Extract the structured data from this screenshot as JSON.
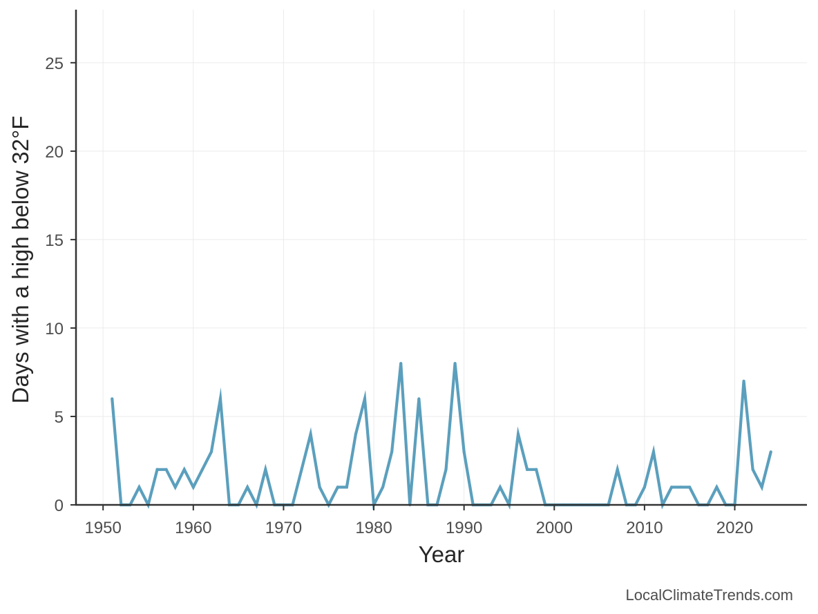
{
  "chart_data": {
    "type": "line",
    "xlabel": "Year",
    "ylabel": "Days with a high below 32°F",
    "xlim": [
      1947,
      2028
    ],
    "ylim": [
      0,
      28
    ],
    "xticks": [
      1950,
      1960,
      1970,
      1980,
      1990,
      2000,
      2010,
      2020
    ],
    "yticks": [
      0,
      5,
      10,
      15,
      20,
      25
    ],
    "grid": true,
    "legend": "none",
    "colors": {
      "line": "#5b9fbd",
      "axis": "#333333",
      "grid": "#ebebeb"
    },
    "series": [
      {
        "x": [
          1951,
          1952,
          1953,
          1954,
          1955,
          1956,
          1957,
          1958,
          1959,
          1960,
          1961,
          1962,
          1963,
          1964,
          1965,
          1966,
          1967,
          1968,
          1969,
          1970,
          1971,
          1972,
          1973,
          1974,
          1975,
          1976,
          1977,
          1978,
          1979,
          1980,
          1981,
          1982,
          1983,
          1984,
          1985,
          1986,
          1987,
          1988,
          1989,
          1990,
          1991,
          1992,
          1993,
          1994,
          1995,
          1996,
          1997,
          1998,
          1999,
          2000,
          2001,
          2002,
          2003,
          2004,
          2005,
          2006,
          2007,
          2008,
          2009,
          2010,
          2011,
          2012,
          2013,
          2014,
          2015,
          2016,
          2017,
          2018,
          2019,
          2020,
          2021,
          2022,
          2023,
          2024
        ],
        "values": [
          6,
          0,
          0,
          1,
          0,
          2,
          2,
          1,
          2,
          1,
          2,
          3,
          6,
          0,
          0,
          1,
          0,
          2,
          0,
          0,
          0,
          2,
          4,
          1,
          0,
          1,
          1,
          4,
          6,
          0,
          1,
          3,
          8,
          0,
          6,
          0,
          0,
          2,
          8,
          3,
          0,
          0,
          0,
          1,
          0,
          4,
          2,
          2,
          0,
          0,
          0,
          0,
          0,
          0,
          0,
          0,
          2,
          0,
          0,
          1,
          3,
          0,
          1,
          1,
          1,
          0,
          0,
          1,
          0,
          0,
          7,
          2,
          1,
          3
        ]
      }
    ]
  },
  "credit": "LocalClimateTrends.com"
}
